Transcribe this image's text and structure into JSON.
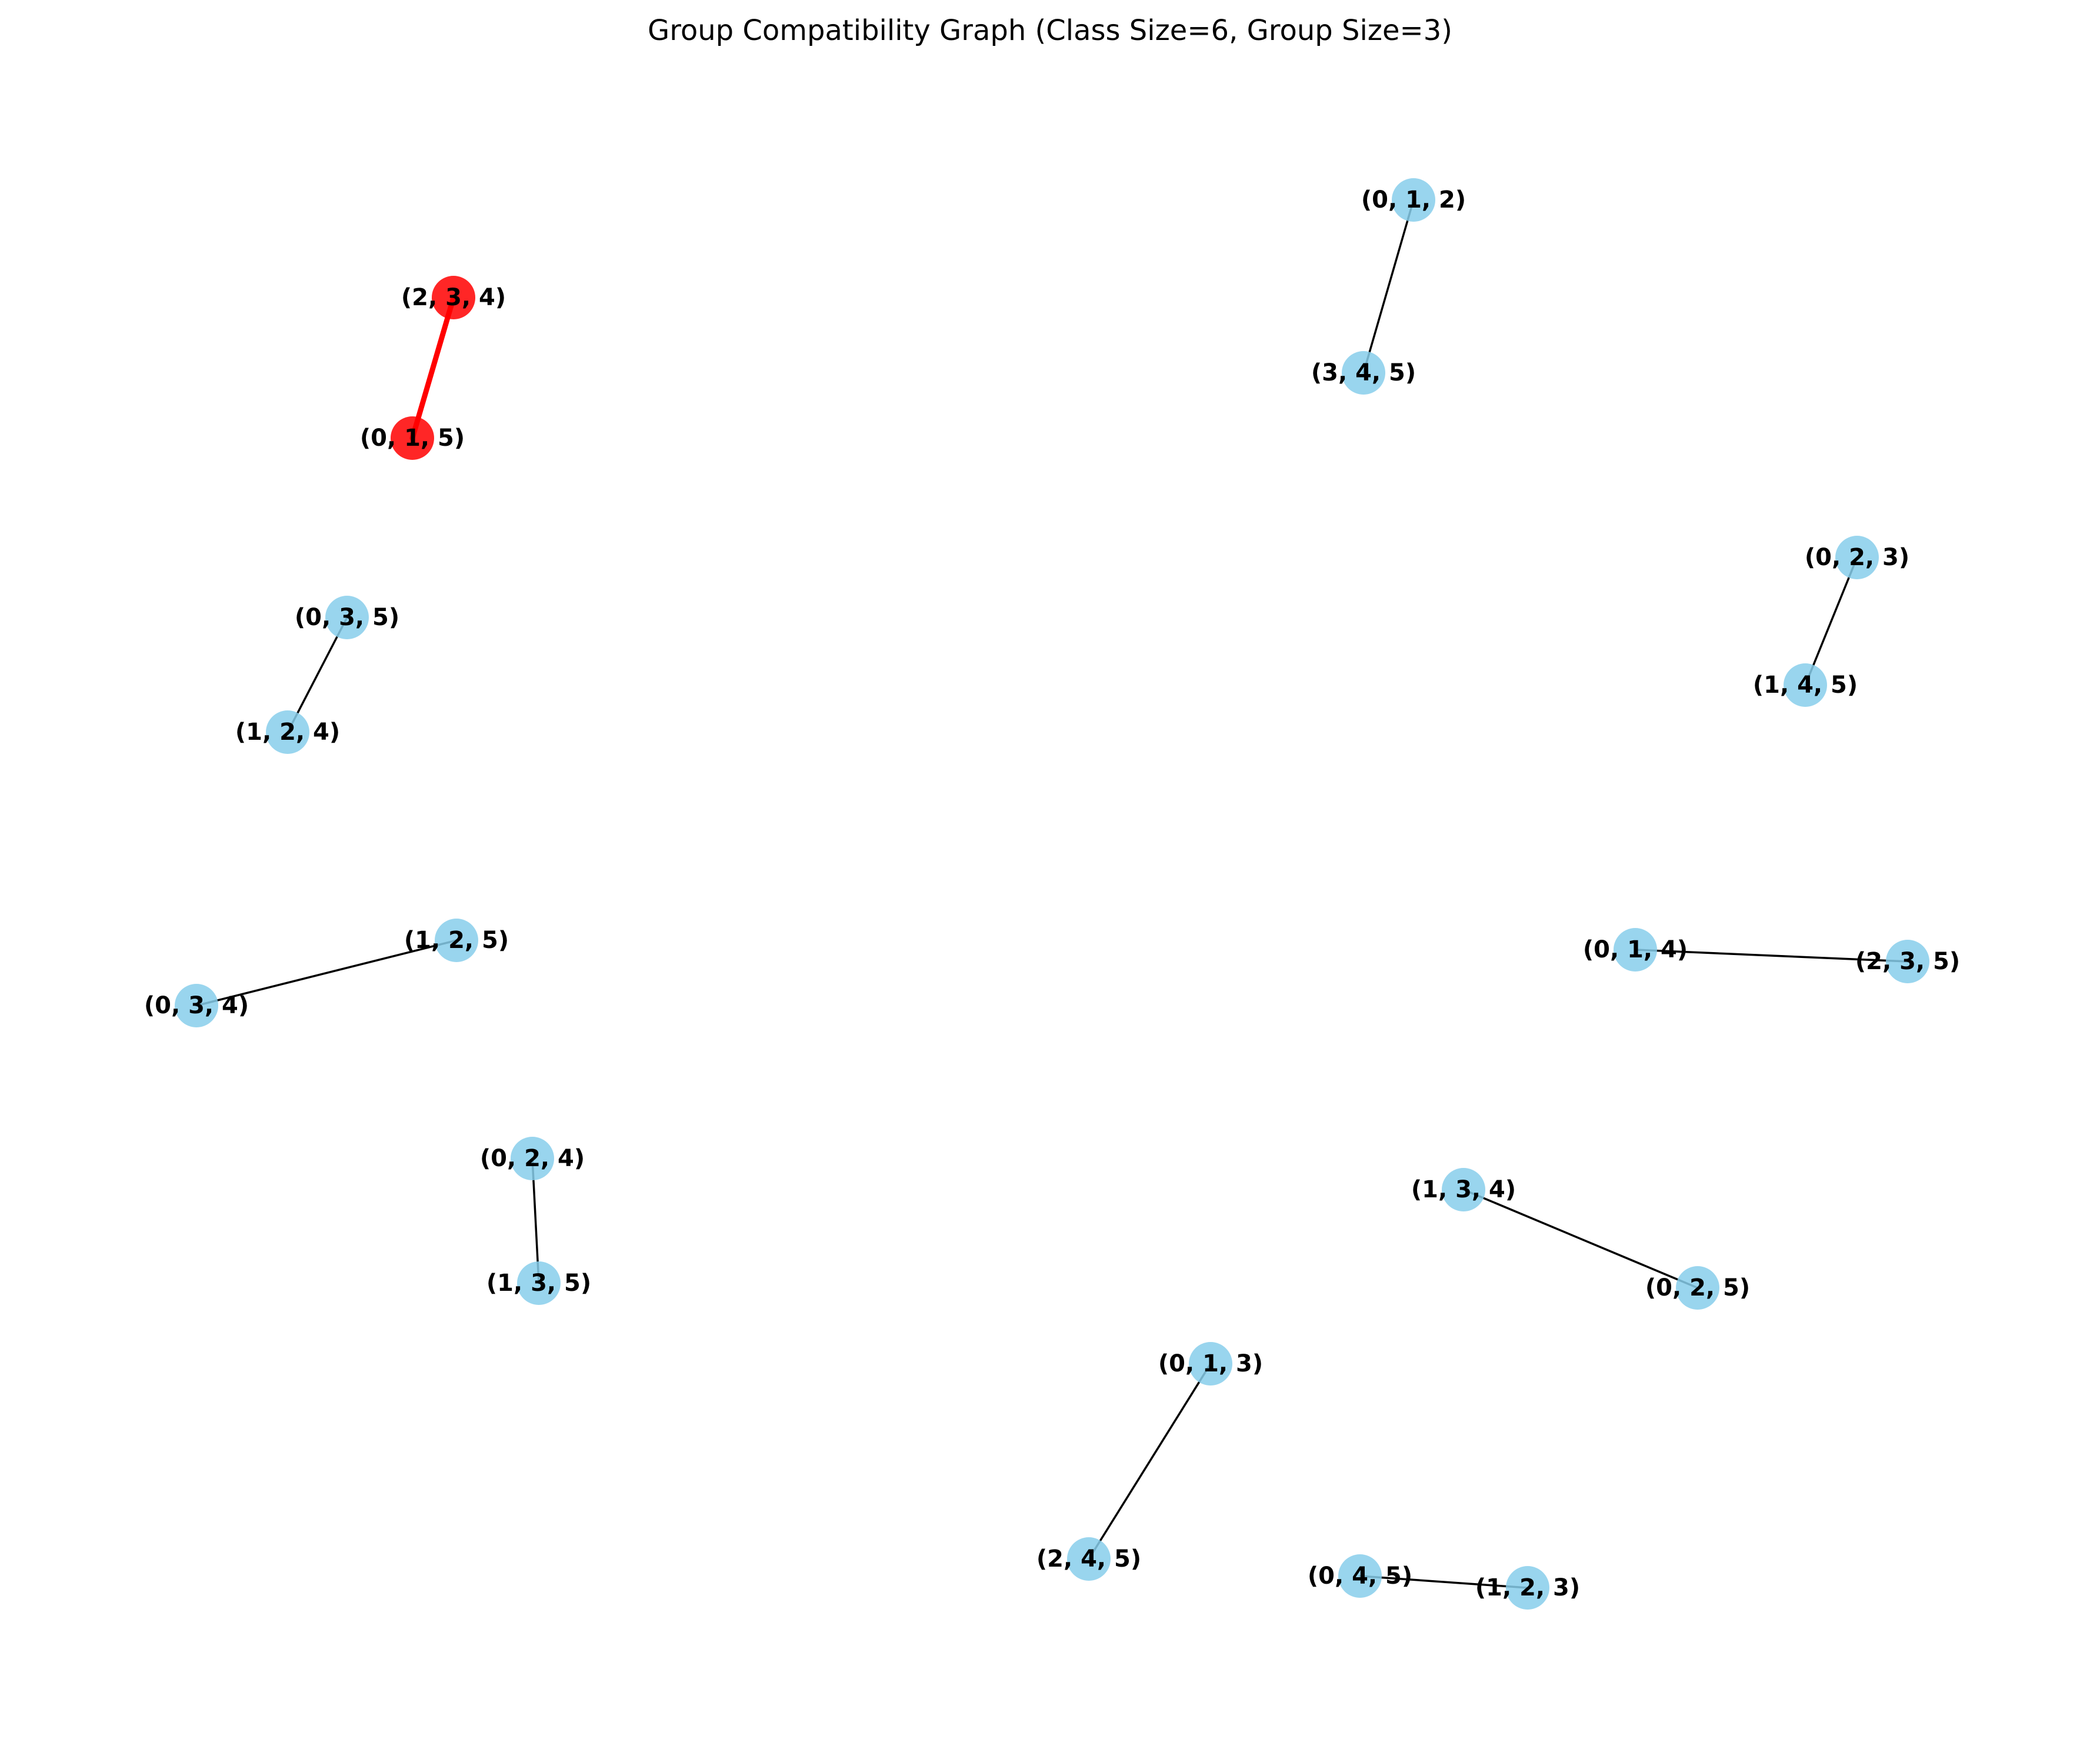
{
  "title": "Group Compatibility Graph (Class Size=6, Group Size=3)",
  "colors": {
    "node_default": "#87CEEB",
    "node_highlight": "#FF0000",
    "edge_default": "#000000",
    "edge_highlight": "#FF0000"
  },
  "nodes": [
    {
      "id": "n012",
      "label": "(0, 1, 2)"
    },
    {
      "id": "n345",
      "label": "(3, 4, 5)"
    },
    {
      "id": "n234",
      "label": "(2, 3, 4)",
      "highlight": true
    },
    {
      "id": "n015",
      "label": "(0, 1, 5)",
      "highlight": true
    },
    {
      "id": "n023",
      "label": "(0, 2, 3)"
    },
    {
      "id": "n145",
      "label": "(1, 4, 5)"
    },
    {
      "id": "n035",
      "label": "(0, 3, 5)"
    },
    {
      "id": "n124",
      "label": "(1, 2, 4)"
    },
    {
      "id": "n125",
      "label": "(1, 2, 5)"
    },
    {
      "id": "n034",
      "label": "(0, 3, 4)"
    },
    {
      "id": "n014",
      "label": "(0, 1, 4)"
    },
    {
      "id": "n235",
      "label": "(2, 3, 5)"
    },
    {
      "id": "n024",
      "label": "(0, 2, 4)"
    },
    {
      "id": "n135",
      "label": "(1, 3, 5)"
    },
    {
      "id": "n134",
      "label": "(1, 3, 4)"
    },
    {
      "id": "n025",
      "label": "(0, 2, 5)"
    },
    {
      "id": "n013",
      "label": "(0, 1, 3)"
    },
    {
      "id": "n245",
      "label": "(2, 4, 5)"
    },
    {
      "id": "n045",
      "label": "(0, 4, 5)"
    },
    {
      "id": "n123",
      "label": "(1, 2, 3)"
    }
  ],
  "edges": [
    {
      "source": "n012",
      "target": "n345"
    },
    {
      "source": "n234",
      "target": "n015",
      "highlight": true
    },
    {
      "source": "n023",
      "target": "n145"
    },
    {
      "source": "n035",
      "target": "n124"
    },
    {
      "source": "n125",
      "target": "n034"
    },
    {
      "source": "n014",
      "target": "n235"
    },
    {
      "source": "n024",
      "target": "n135"
    },
    {
      "source": "n134",
      "target": "n025"
    },
    {
      "source": "n013",
      "target": "n245"
    },
    {
      "source": "n045",
      "target": "n123"
    }
  ]
}
